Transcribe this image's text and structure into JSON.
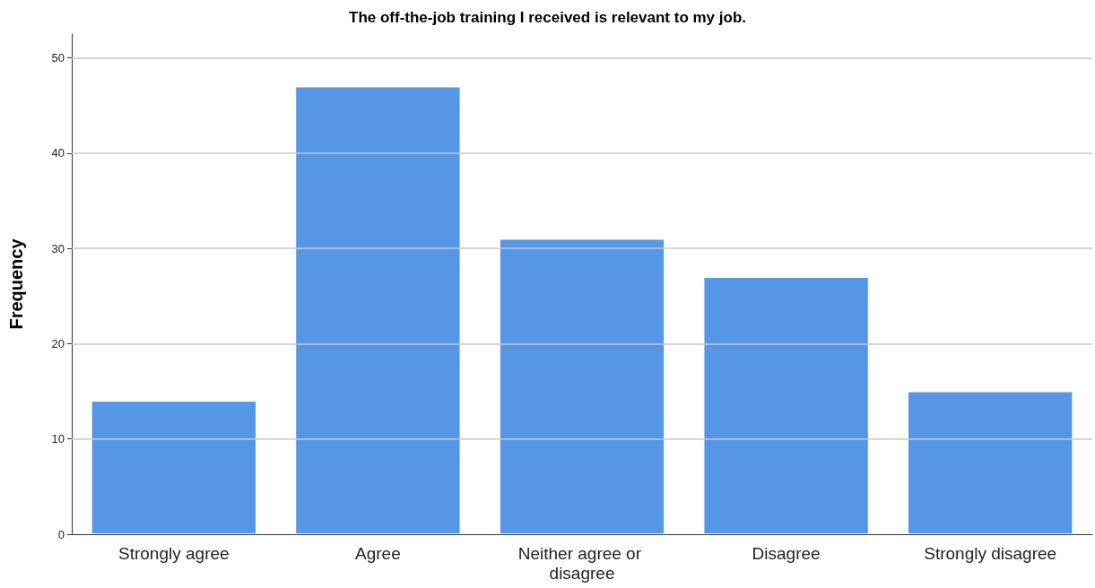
{
  "chart_data": {
    "type": "bar",
    "title": "The off-the-job training I received is relevant to my job.",
    "ylabel": "Frequency",
    "categories": [
      "Strongly agree",
      "Agree",
      "Neither agree or disagree",
      "Disagree",
      "Strongly disagree"
    ],
    "values": [
      14,
      47,
      31,
      27,
      15
    ],
    "color": "#5596e6",
    "ylim": [
      0,
      52.5
    ],
    "yticks": [
      0,
      10,
      20,
      30,
      40,
      50
    ],
    "grid": "y"
  }
}
